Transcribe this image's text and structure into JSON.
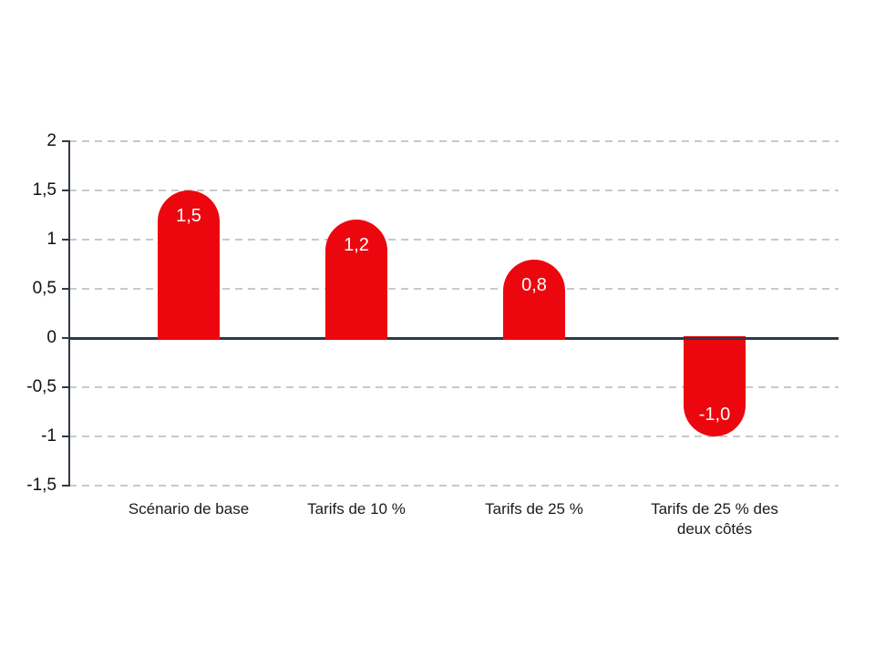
{
  "chart_data": {
    "type": "bar",
    "title": "",
    "subtitle": "",
    "legend": "none",
    "grid": "horizontal-dashed",
    "categories": [
      "Scénario de base",
      "Tarifs de 10 %",
      "Tarifs de 25 %",
      "Tarifs de 25 % des deux côtés"
    ],
    "category_lines": [
      [
        "Scénario de base"
      ],
      [
        "Tarifs de 10 %"
      ],
      [
        "Tarifs de 25 %"
      ],
      [
        "Tarifs de 25 % des",
        "deux côtés"
      ]
    ],
    "values": [
      1.5,
      1.2,
      0.8,
      -1.0
    ],
    "value_labels": [
      "1,5",
      "1,2",
      "0,8",
      "-1,0"
    ],
    "xlabel": "",
    "ylabel": "",
    "ylim": [
      -1.5,
      2
    ],
    "y_ticks": [
      {
        "label": "2",
        "value": 2
      },
      {
        "label": "1,5",
        "value": 1.5
      },
      {
        "label": "1",
        "value": 1
      },
      {
        "label": "0,5",
        "value": 0.5
      },
      {
        "label": "0",
        "value": 0
      },
      {
        "label": "-0,5",
        "value": -0.5
      },
      {
        "label": "-1",
        "value": -1
      },
      {
        "label": "-1,5",
        "value": -1.5
      }
    ],
    "colors": {
      "bar": "#ec070e",
      "axis": "#2e3947",
      "grid": "#c9c9c9",
      "tick_label": "#111111",
      "category_label": "#1a1a1a",
      "value_label": "#ffffff"
    },
    "bar_style": "rounded-outer-cap"
  }
}
